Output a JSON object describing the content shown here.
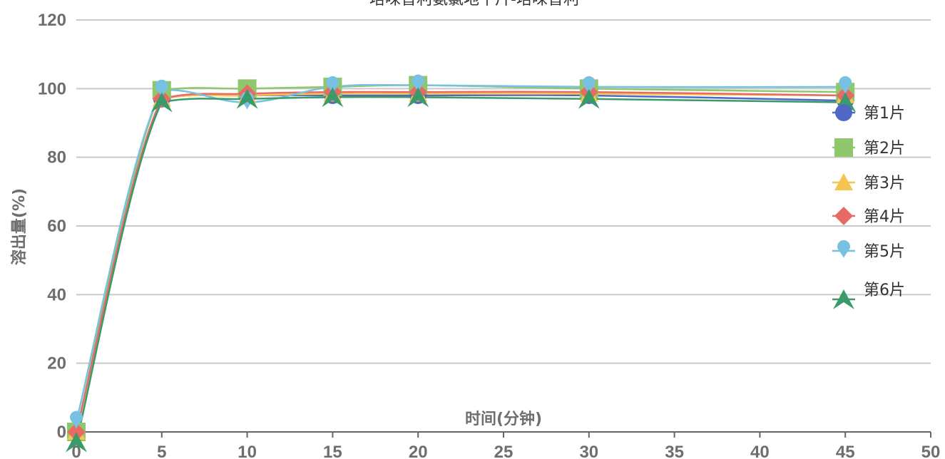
{
  "chart_data": {
    "type": "line",
    "title": "培哚普利氨氯地平片-培哚普利",
    "xlabel": "时间(分钟)",
    "ylabel": "溶出量(%)",
    "xlim": [
      0,
      50
    ],
    "ylim": [
      0,
      120
    ],
    "x_ticks": [
      0,
      5,
      10,
      15,
      20,
      25,
      30,
      35,
      40,
      45,
      50
    ],
    "y_ticks": [
      0,
      20,
      40,
      60,
      80,
      100,
      120
    ],
    "grid": "horizontal",
    "legend_position": "right",
    "x": [
      0,
      5,
      10,
      15,
      20,
      30,
      45
    ],
    "series": [
      {
        "name": "第1片",
        "marker": "circle",
        "color": "#4e68c4",
        "values": [
          0,
          97,
          98,
          98,
          98,
          98,
          96.5
        ]
      },
      {
        "name": "第2片",
        "marker": "square",
        "color": "#8fc86c",
        "values": [
          0,
          99.5,
          100,
          100.5,
          101,
          100,
          99
        ]
      },
      {
        "name": "第3片",
        "marker": "triangle",
        "color": "#f6c453",
        "values": [
          0,
          97,
          98,
          98.5,
          98.5,
          98.5,
          98
        ]
      },
      {
        "name": "第4片",
        "marker": "diamond",
        "color": "#e86a64",
        "values": [
          0,
          97,
          98.5,
          99,
          99,
          99,
          98
        ]
      },
      {
        "name": "第5片",
        "marker": "pin",
        "color": "#79c1e0",
        "values": [
          3,
          99.5,
          96,
          100.5,
          101,
          100.5,
          100.5
        ]
      },
      {
        "name": "第6片",
        "marker": "arrow",
        "color": "#3a9a6a",
        "values": [
          -3,
          96,
          97,
          97.5,
          97.5,
          97,
          96
        ]
      }
    ]
  }
}
